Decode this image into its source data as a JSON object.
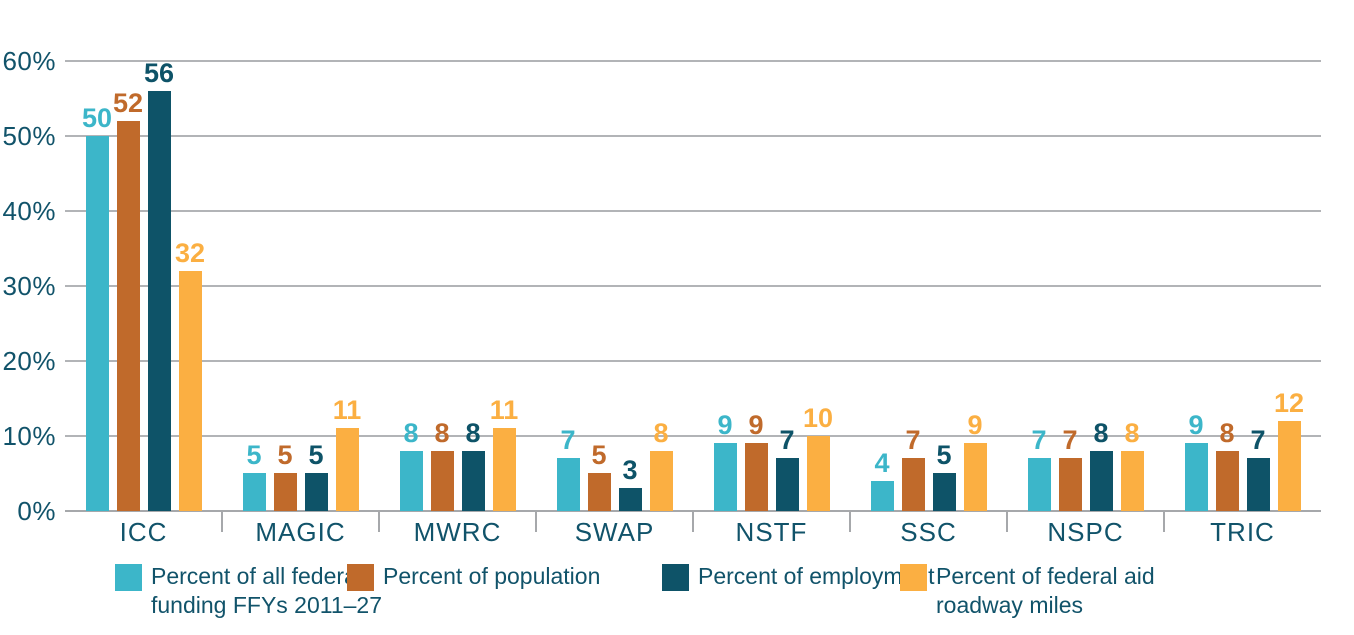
{
  "chart_data": {
    "type": "bar",
    "title": "",
    "categories": [
      "ICC",
      "MAGIC",
      "MWRC",
      "SWAP",
      "NSTF",
      "SSC",
      "NSPC",
      "TRIC"
    ],
    "series": [
      {
        "name": "Percent of all federal\nfunding FFYs 2011–27",
        "color": "#3cb6c9",
        "values": [
          50,
          5,
          8,
          7,
          9,
          4,
          7,
          9
        ]
      },
      {
        "name": "Percent of population",
        "color": "#c06a2b",
        "values": [
          52,
          5,
          8,
          5,
          9,
          7,
          7,
          8
        ]
      },
      {
        "name": "Percent of employment",
        "color": "#0e5368",
        "values": [
          56,
          5,
          8,
          3,
          7,
          5,
          8,
          7
        ]
      },
      {
        "name": "Percent of federal aid\nroadway miles",
        "color": "#fbaf42",
        "values": [
          32,
          11,
          11,
          8,
          10,
          9,
          8,
          12
        ]
      }
    ],
    "y_axis": {
      "tick_labels": [
        "0%",
        "10%",
        "20%",
        "30%",
        "40%",
        "50%",
        "60%"
      ],
      "min": 0,
      "max": 60,
      "tick_step": 10,
      "unit": "%"
    },
    "grid": true,
    "value_labels": true,
    "legend_position": "bottom"
  },
  "style": {
    "text_color": "#11536a",
    "grid_color": "#b2b4b7",
    "axis_color": "#a6a8ab",
    "background": "#ffffff"
  }
}
